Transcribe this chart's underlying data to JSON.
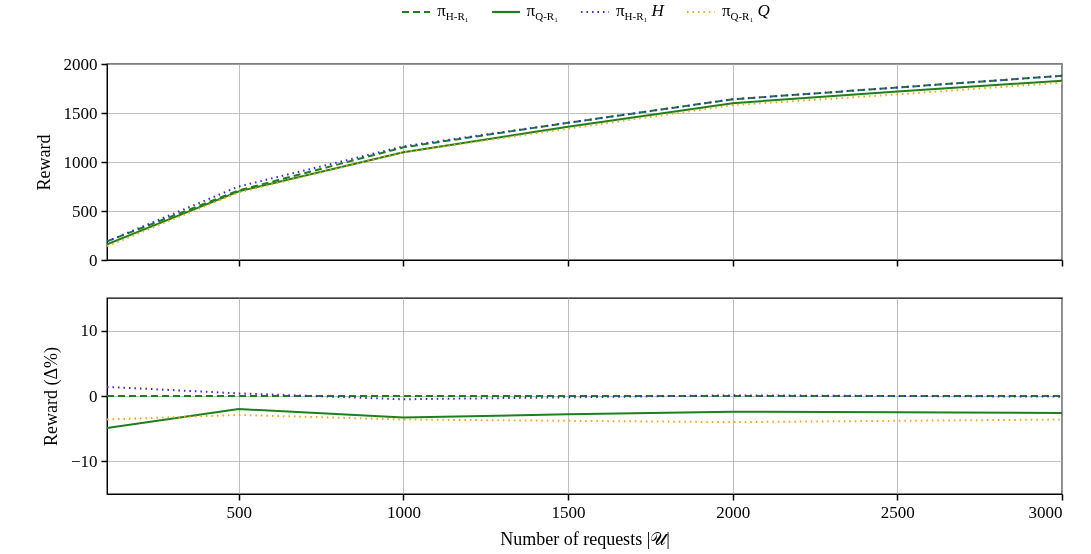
{
  "chart_data": [
    {
      "type": "line",
      "ylabel": "Reward",
      "x": [
        100,
        500,
        1000,
        1500,
        2000,
        2500,
        3000
      ],
      "xlim": [
        100,
        3000
      ],
      "xticks": [
        500,
        1000,
        1500,
        2000,
        2500,
        3000
      ],
      "ylim": [
        0,
        2000
      ],
      "yticks": [
        0,
        500,
        1000,
        1500,
        2000
      ],
      "grid": true,
      "legend": "top",
      "tick_labels": "y",
      "series": [
        {
          "name": "π$_{H-R₁}$",
          "color": "#1e7f1e",
          "line_style": "dashed",
          "values": [
            190,
            710,
            1150,
            1400,
            1640,
            1760,
            1880
          ]
        },
        {
          "name": "π$_{Q-R₁}$",
          "color": "#1e7f1e",
          "line_style": "solid",
          "values": [
            160,
            700,
            1100,
            1360,
            1600,
            1720,
            1830
          ]
        },
        {
          "name": "π$_{H-R₁}$ H",
          "color": "#3b1ff2",
          "line_style": "dotted",
          "values": [
            190,
            750,
            1160,
            1400,
            1640,
            1760,
            1880
          ]
        },
        {
          "name": "π$_{Q-R₁}$ Q",
          "color": "#ffa500",
          "line_style": "dotted",
          "values": [
            140,
            690,
            1100,
            1340,
            1580,
            1690,
            1810
          ]
        }
      ]
    },
    {
      "type": "line",
      "ylabel": "Reward (Δ%)",
      "xlabel": "Number of requests |𝒰|",
      "x": [
        100,
        500,
        1000,
        1500,
        2000,
        2500,
        3000
      ],
      "xlim": [
        100,
        3000
      ],
      "xticks": [
        500,
        1000,
        1500,
        2000,
        2500,
        3000
      ],
      "ylim": [
        -15,
        15
      ],
      "yticks": [
        -10,
        0,
        10
      ],
      "grid": true,
      "series": [
        {
          "color": "#1e7f1e",
          "line_style": "dashed",
          "values": [
            0,
            0,
            0,
            0,
            0,
            0,
            0
          ]
        },
        {
          "color": "#1e7f1e",
          "line_style": "solid",
          "values": [
            -4.9,
            -2.0,
            -3.3,
            -2.8,
            -2.4,
            -2.5,
            -2.6
          ]
        },
        {
          "color": "#3b1ff2",
          "line_style": "dotted",
          "values": [
            1.4,
            0.4,
            -0.5,
            -0.2,
            0.1,
            0,
            -0.1
          ]
        },
        {
          "color": "#ffa500",
          "line_style": "dotted",
          "values": [
            -3.6,
            -2.9,
            -3.6,
            -3.8,
            -4.0,
            -3.8,
            -3.6
          ]
        }
      ]
    }
  ]
}
